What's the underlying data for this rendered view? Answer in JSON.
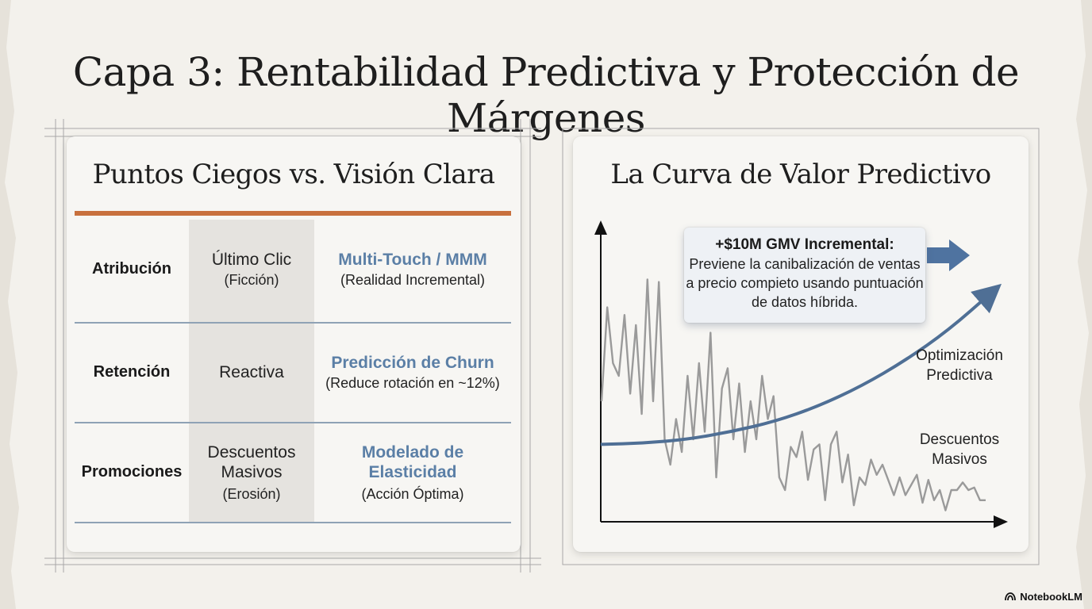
{
  "title": "Capa 3: Rentabilidad Predictiva y Protección de Márgenes",
  "left_panel": {
    "title": "Puntos Ciegos vs. Visión Clara",
    "rows": [
      {
        "label": "Atribución",
        "mid_main": "Último Clic",
        "mid_sub": "(Ficción)",
        "right_main": "Multi-Touch / MMM",
        "right_sub": "(Realidad Incremental)"
      },
      {
        "label": "Retención",
        "mid_main": "Reactiva",
        "mid_sub": "",
        "right_main": "Predicción de Churn",
        "right_sub": "(Reduce rotación en ~12%)"
      },
      {
        "label": "Promociones",
        "mid_main": "Descuentos Masivos",
        "mid_sub": "(Erosión)",
        "right_main": "Modelado de Elasticidad",
        "right_sub": "(Acción Óptima)"
      }
    ]
  },
  "right_panel": {
    "title": "La Curva de Valor Predictivo",
    "callout": {
      "headline": "+$10M GMV Incremental:",
      "body": "Previene la canibalización de ventas a precio compieto usando puntuación de datos híbrida."
    },
    "labels": {
      "curve": "Optimización Predictiva",
      "jagged": "Descuentos Masivos"
    }
  },
  "chart_data": {
    "type": "line",
    "title": "La Curva de Valor Predictivo",
    "xlabel": "",
    "ylabel": "",
    "axes_ticks": false,
    "series": [
      {
        "name": "Optimización Predictiva",
        "shape": "exponential rising curve with arrowhead",
        "color": "#4f6f95",
        "values": [
          0.28,
          0.285,
          0.3,
          0.33,
          0.37,
          0.43,
          0.51,
          0.61,
          0.73,
          0.88
        ]
      },
      {
        "name": "Descuentos Masivos",
        "shape": "jagged volatile declining line",
        "color": "#9a9a9a",
        "values": [
          0.45,
          0.82,
          0.6,
          0.55,
          0.79,
          0.48,
          0.75,
          0.4,
          0.93,
          0.45,
          0.92,
          0.3,
          0.2,
          0.38,
          0.25,
          0.55,
          0.3,
          0.6,
          0.33,
          0.72,
          0.15,
          0.5,
          0.58,
          0.3,
          0.52,
          0.25,
          0.45,
          0.3,
          0.55,
          0.38,
          0.47,
          0.15,
          0.1,
          0.27,
          0.23,
          0.33,
          0.14,
          0.26,
          0.28,
          0.06,
          0.28,
          0.33,
          0.13,
          0.24,
          0.04,
          0.15,
          0.12,
          0.22,
          0.16,
          0.2,
          0.14,
          0.08,
          0.15,
          0.08,
          0.12,
          0.16,
          0.05,
          0.14,
          0.06,
          0.1,
          0.02,
          0.1,
          0.1,
          0.13,
          0.1,
          0.11,
          0.06,
          0.06
        ],
        "trend": "decreasing"
      }
    ],
    "colors": {
      "arrow": "#4f6f95",
      "axes": "#111111"
    }
  },
  "brand": "NotebookLM"
}
